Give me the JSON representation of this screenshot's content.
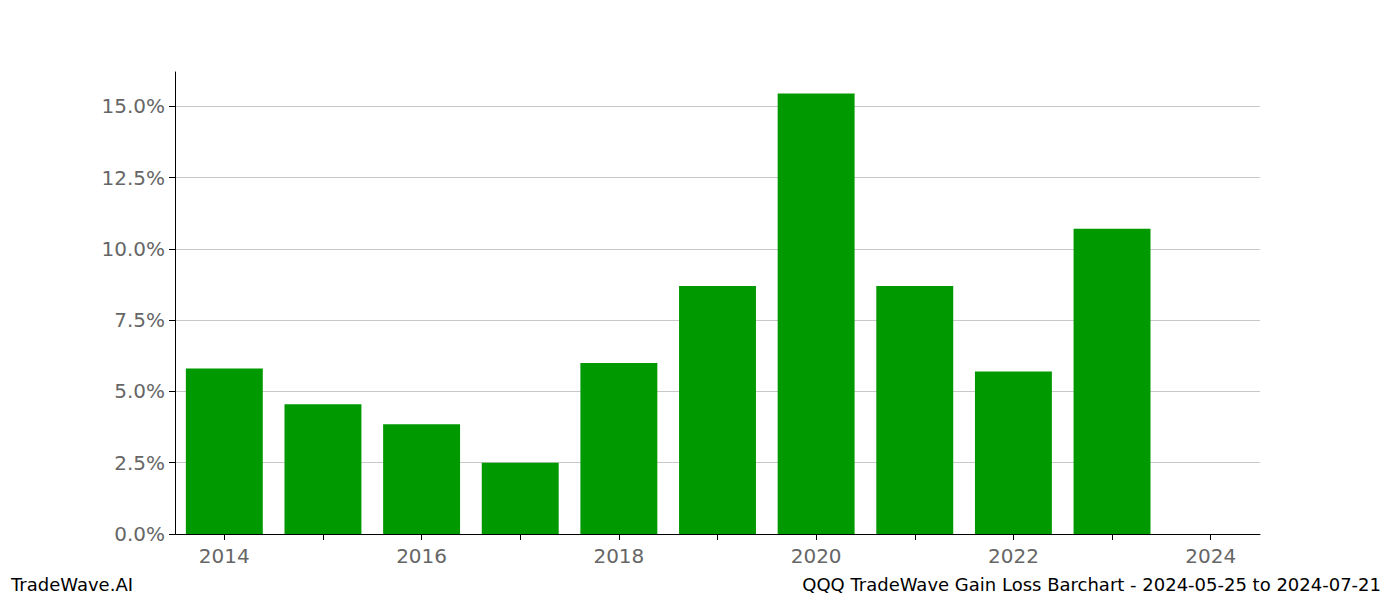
{
  "chart_data": {
    "type": "bar",
    "title": "QQQ TradeWave Gain Loss Barchart - 2024-05-25 to 2024-07-21",
    "annotations": [
      "TradeWave.AI"
    ],
    "categories": [
      "2014",
      null,
      "2016",
      null,
      "2018",
      null,
      "2020",
      null,
      "2022",
      null,
      "2024"
    ],
    "values": [
      5.8,
      4.55,
      3.85,
      2.5,
      6.0,
      8.7,
      15.45,
      8.7,
      5.7,
      10.7,
      null
    ],
    "color": "#009900",
    "ylim": [
      0,
      16.2
    ],
    "yticks": [
      {
        "value": 0,
        "label": "0.0%"
      },
      {
        "value": 2.5,
        "label": "2.5%"
      },
      {
        "value": 5,
        "label": "5.0%"
      },
      {
        "value": 7.5,
        "label": "7.5%"
      },
      {
        "value": 10,
        "label": "10.0%"
      },
      {
        "value": 12.5,
        "label": "12.5%"
      },
      {
        "value": 15,
        "label": "15.0%"
      }
    ],
    "grid": true
  }
}
